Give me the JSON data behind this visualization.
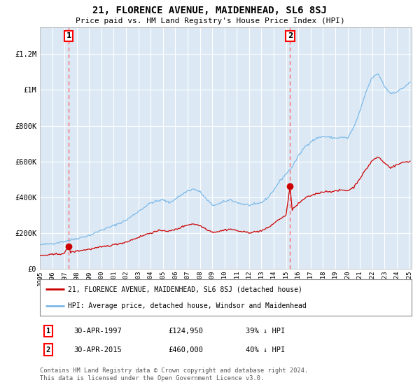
{
  "title": "21, FLORENCE AVENUE, MAIDENHEAD, SL6 8SJ",
  "subtitle": "Price paid vs. HM Land Registry's House Price Index (HPI)",
  "background_color": "#dce9f5",
  "ylabel_ticks": [
    "£0",
    "£200K",
    "£400K",
    "£600K",
    "£800K",
    "£1M",
    "£1.2M"
  ],
  "ytick_values": [
    0,
    200000,
    400000,
    600000,
    800000,
    1000000,
    1200000
  ],
  "ylim": [
    0,
    1350000
  ],
  "xlim_start": 1995.3,
  "xlim_end": 2025.2,
  "hpi_color": "#7cb9e8",
  "price_color": "#cc0000",
  "dashed_color": "#ff5555",
  "legend_label_price": "21, FLORENCE AVENUE, MAIDENHEAD, SL6 8SJ (detached house)",
  "legend_label_hpi": "HPI: Average price, detached house, Windsor and Maidenhead",
  "sale1_date": 1997.33,
  "sale1_price": 124950,
  "sale1_label": "1",
  "sale2_date": 2015.33,
  "sale2_price": 460000,
  "sale2_label": "2",
  "footnote": "Contains HM Land Registry data © Crown copyright and database right 2024.\nThis data is licensed under the Open Government Licence v3.0.",
  "table_rows": [
    [
      "1",
      "30-APR-1997",
      "£124,950",
      "39% ↓ HPI"
    ],
    [
      "2",
      "30-APR-2015",
      "£460,000",
      "40% ↓ HPI"
    ]
  ]
}
